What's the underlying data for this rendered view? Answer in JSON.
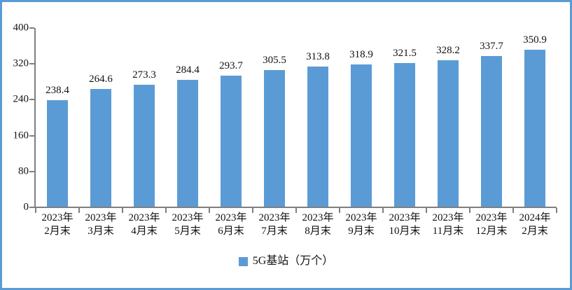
{
  "chart_data": {
    "type": "bar",
    "categories": [
      "2023年2月末",
      "2023年3月末",
      "2023年4月末",
      "2023年5月末",
      "2023年6月末",
      "2023年7月末",
      "2023年8月末",
      "2023年9月末",
      "2023年10月末",
      "2023年11月末",
      "2023年12月末",
      "2024年2月末"
    ],
    "values": [
      238.4,
      264.6,
      273.3,
      284.4,
      293.7,
      305.5,
      313.8,
      318.9,
      321.5,
      328.2,
      337.7,
      350.9
    ],
    "legend": "5G基站（万个）",
    "ylim": [
      0,
      400
    ],
    "yticks": [
      0,
      80,
      160,
      240,
      320,
      400
    ],
    "bar_color": "#5B9BD5",
    "grid": false,
    "legend_position": "bottom",
    "data_labels": true
  },
  "frame": {
    "border_color": "#5B9BD5"
  },
  "axis": {
    "line_color": "#7F7F7F",
    "text_color": "#111111"
  }
}
